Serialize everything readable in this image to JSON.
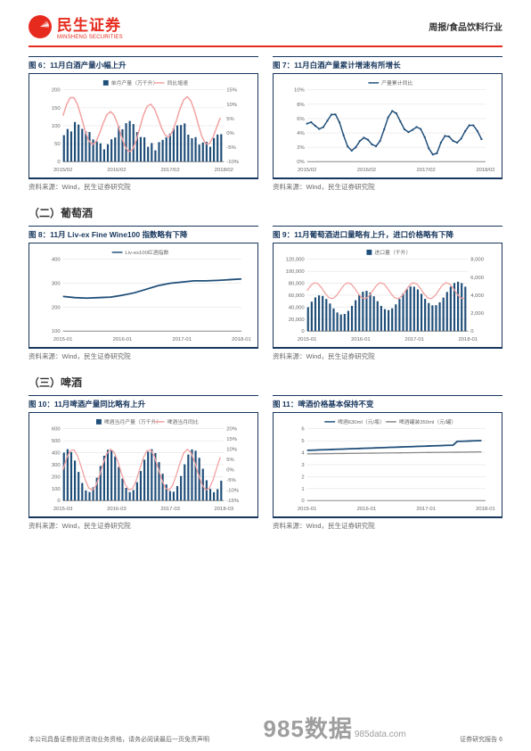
{
  "header": {
    "brand_cn": "民生证券",
    "brand_en": "MINSHENG SECURITIES",
    "right": "周报/食品饮料行业"
  },
  "sections": {
    "s2": "（二）葡萄酒",
    "s3": "（三）啤酒"
  },
  "charts": {
    "f6": {
      "title": "图 6：11月白酒产量小幅上升",
      "legend_a": "单月产量（万千升）",
      "legend_b": "同比增速",
      "xlabels": [
        "2015/02",
        "2016/02",
        "2017/02",
        "2018/02"
      ],
      "yleft": [
        0,
        50,
        100,
        150,
        200
      ],
      "yright": [
        "-10%",
        "-5%",
        "0%",
        "5%",
        "10%",
        "15%"
      ],
      "line_color": "#f2a0a0",
      "bar_color": "#1f4e79",
      "bg": "#ffffff",
      "source": "资料来源：Wind，民生证券研究院"
    },
    "f7": {
      "title": "图 7：11月白酒产量累计增速有所增长",
      "legend_a": "产量累计同比",
      "xlabels": [
        "2015/02",
        "2016/02",
        "2017/02",
        "2018/02"
      ],
      "yleft": [
        "0%",
        "2%",
        "4%",
        "6%",
        "8%",
        "10%"
      ],
      "line_color": "#1f4e79",
      "bg": "#ffffff",
      "source": "资料来源：Wind，民生证券研究院"
    },
    "f8": {
      "title": "图 8：11月 Liv-ex Fine Wine100 指数略有下降",
      "legend_a": "Liv-ex100红酒指数",
      "xlabels": [
        "2015-01",
        "2016-01",
        "2017-01",
        "2018-01"
      ],
      "yleft": [
        100,
        200,
        300,
        400
      ],
      "line_color": "#1f4e79",
      "bg": "#ffffff",
      "line_values": [
        245,
        240,
        238,
        240,
        242,
        250,
        260,
        275,
        290,
        300,
        305,
        310,
        310,
        312,
        315,
        318
      ],
      "source": "资料来源：Wind，民生证券研究院"
    },
    "f9": {
      "title": "图 9：11月葡萄酒进口量略有上升，进口价格略有下降",
      "legend_a": "进口量（千升）",
      "xlabels": [
        "2015-01",
        "2016-01",
        "2017-01",
        "2018-01"
      ],
      "yleft": [
        0,
        20000,
        40000,
        60000,
        80000,
        100000,
        120000
      ],
      "yright": [
        0,
        2000,
        4000,
        6000,
        8000
      ],
      "line_color": "#f2a0a0",
      "bar_color": "#1f4e79",
      "source": "资料来源：Wind，民生证券研究院"
    },
    "f10": {
      "title": "图 10：11月啤酒产量同比略有上升",
      "legend_a": "啤酒当月产量（万千升）",
      "legend_b": "啤酒当月同比",
      "xlabels": [
        "2015-03",
        "2016-03",
        "2017-03",
        "2018-03"
      ],
      "yleft": [
        0,
        100,
        200,
        300,
        400,
        500,
        600
      ],
      "yright": [
        "-15%",
        "-10%",
        "-5%",
        "0%",
        "5%",
        "10%",
        "15%",
        "20%"
      ],
      "line_color": "#f2a0a0",
      "bar_color": "#1f4e79",
      "source": "资料来源：Wind，民生证券研究院"
    },
    "f11": {
      "title": "图 11：啤酒价格基本保持不变",
      "legend_a": "啤酒630ml（元/瓶）",
      "legend_b": "啤酒罐装350ml（元/罐）",
      "xlabels": [
        "2015-01",
        "2016-01",
        "2017-01",
        "2018-01"
      ],
      "yleft": [
        0,
        1,
        2,
        3,
        4,
        5,
        6
      ],
      "line_a_color": "#1f4e79",
      "line_b_color": "#888888",
      "source": "资料来源：Wind，民生证券研究院"
    }
  },
  "footer": {
    "left": "本公司具备证券投资咨询业务资格，请务必阅读最后一页免责声明",
    "watermark": "985数据",
    "wm_sub": "985data.com",
    "pg_note": "证券研究报告  6"
  }
}
